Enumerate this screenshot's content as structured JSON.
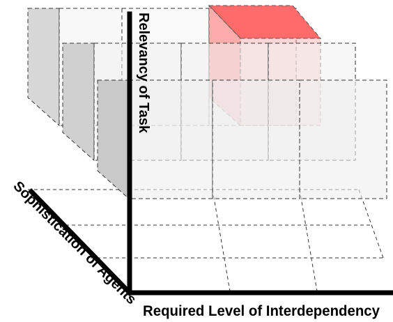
{
  "diagram": {
    "axes": {
      "x_label": "Required Level of Interdependency",
      "y_label": "Relevancy of Task",
      "z_label": "Sophistication of Agents"
    },
    "grid": {
      "columns": 3,
      "layers": 3,
      "rows": 2
    },
    "highlighted_cell": {
      "column": 3,
      "layer": 1,
      "row": 1,
      "color": "#ff6b6b"
    },
    "colors": {
      "axis": "#000000",
      "edge": "#333333",
      "cube_face": "#e6e6e6",
      "highlight": "#ff6b6b"
    }
  }
}
